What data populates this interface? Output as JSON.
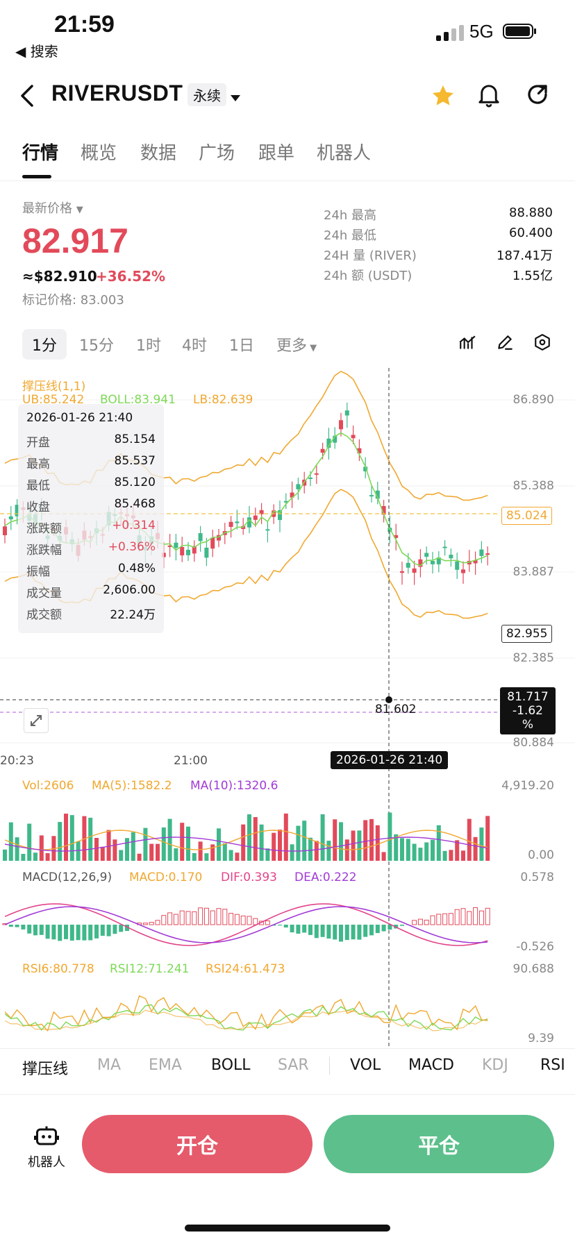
{
  "status_bar": {
    "time": "21:59",
    "back_label": "◀ 搜索",
    "network": "5G"
  },
  "header": {
    "symbol": "RIVERUSDT",
    "contract_type": "永续"
  },
  "tabs": [
    "行情",
    "概览",
    "数据",
    "广场",
    "跟单",
    "机器人"
  ],
  "price_panel": {
    "latest_label": "最新价格",
    "last_price": "82.917",
    "usd_price": "≈$82.910",
    "change_pct": "+36.52%",
    "mark_price": "标记价格: 83.003",
    "stats": [
      {
        "label": "24h  最高",
        "value": "88.880"
      },
      {
        "label": "24h  最低",
        "value": "60.400"
      },
      {
        "label": "24H  量 (RIVER)",
        "value": "187.41万"
      },
      {
        "label": "24h  额 (USDT)",
        "value": "1.55亿"
      }
    ]
  },
  "timeframes": [
    "1分",
    "15分",
    "1时",
    "4时",
    "1日",
    "更多"
  ],
  "main_chart": {
    "indicator_title": "撑压线(1,1)",
    "legend_boll": {
      "ub": "UB:85.242",
      "boll": "BOLL:83.941",
      "lb": "LB:82.639"
    },
    "y_axis": [
      "86.890",
      "85.388",
      "83.887",
      "82.385",
      "80.884"
    ],
    "price_lines": {
      "dashed_yellow": "85.024",
      "current": "82.955",
      "crosshair_price": "81.717",
      "crosshair_pct": "-1.62 %"
    },
    "low_marker": "81.602",
    "x_axis": [
      "20:23",
      "21:00"
    ],
    "crosshair_time": "2026-01-26 21:40",
    "colors": {
      "up": "#e24a5a",
      "down": "#3fb88a",
      "boll_mid": "#7ed957",
      "boll_band": "#f0a830"
    }
  },
  "tooltip": {
    "time": "2026-01-26 21:40",
    "rows": [
      {
        "k": "开盘",
        "v": "85.154"
      },
      {
        "k": "最高",
        "v": "85.537"
      },
      {
        "k": "最低",
        "v": "85.120"
      },
      {
        "k": "收盘",
        "v": "85.468"
      },
      {
        "k": "涨跌额",
        "v": "+0.314"
      },
      {
        "k": "涨跌幅",
        "v": "+0.36%"
      },
      {
        "k": "振幅",
        "v": "0.48%"
      },
      {
        "k": "成交量",
        "v": "2,606.00"
      },
      {
        "k": "成交额",
        "v": "22.24万"
      }
    ]
  },
  "vol_panel": {
    "vol": "Vol:2606",
    "ma5": "MA(5):1582.2",
    "ma10": "MA(10):1320.6",
    "top": "4,919.20",
    "bottom": "0.00"
  },
  "macd_panel": {
    "title": "MACD(12,26,9)",
    "macd": "MACD:0.170",
    "dif": "DIF:0.393",
    "dea": "DEA:0.222",
    "top": "0.578",
    "bottom": "-0.526"
  },
  "rsi_panel": {
    "rsi6": "RSI6:80.778",
    "rsi12": "RSI12:71.241",
    "rsi24": "RSI24:61.473",
    "top": "90.688",
    "bottom": "9.39"
  },
  "indicator_bar": [
    "撑压线",
    "MA",
    "EMA",
    "BOLL",
    "SAR",
    "VOL",
    "MACD",
    "KDJ",
    "RSI"
  ],
  "bottom": {
    "robot": "机器人",
    "open": "开仓",
    "close": "平仓"
  }
}
